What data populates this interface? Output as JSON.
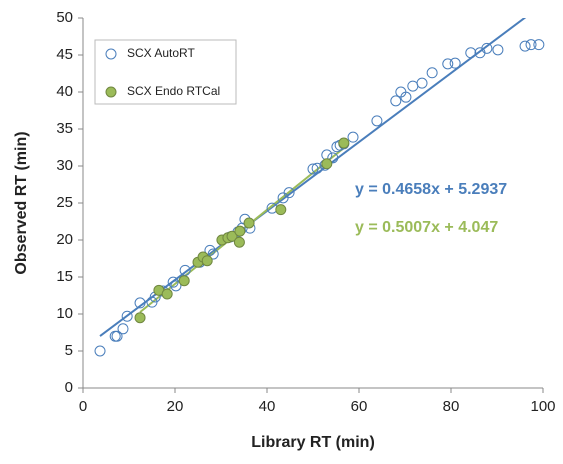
{
  "chart_data": {
    "type": "scatter",
    "x_label": "Library RT (min)",
    "y_label": "Observed RT (min)",
    "xlim": [
      0,
      100
    ],
    "xticks": [
      0,
      20,
      40,
      60,
      80,
      100
    ],
    "ylim": [
      0,
      50
    ],
    "yticks": [
      0,
      5,
      10,
      15,
      20,
      25,
      30,
      35,
      40,
      45,
      50
    ],
    "grid": false,
    "legend": "upper left",
    "series": [
      {
        "name": "SCX AutoRT",
        "color": "#4a7ebb",
        "filled": false,
        "x": [
          3.7,
          7.0,
          7.4,
          8.7,
          9.6,
          12.4,
          15.0,
          15.7,
          17.4,
          19.6,
          20.2,
          22.2,
          25.4,
          26.5,
          27.6,
          28.3,
          32.0,
          33.7,
          34.6,
          35.2,
          36.3,
          41.1,
          43.5,
          44.8,
          50.0,
          50.9,
          52.6,
          53.0,
          54.3,
          55.2,
          55.9,
          56.7,
          58.7,
          63.9,
          68.0,
          69.1,
          70.2,
          71.7,
          73.7,
          75.9,
          79.3,
          80.9,
          84.3,
          86.3,
          87.8,
          90.2,
          96.1,
          97.4,
          99.1
        ],
        "values": [
          5.0,
          7.0,
          7.0,
          8.0,
          9.7,
          11.5,
          11.6,
          12.3,
          13.1,
          14.3,
          13.8,
          15.9,
          17.0,
          17.3,
          18.6,
          18.1,
          20.4,
          21.1,
          21.6,
          22.8,
          21.6,
          24.3,
          25.7,
          26.4,
          29.6,
          29.7,
          30.1,
          31.5,
          31.1,
          32.6,
          32.8,
          33.0,
          33.9,
          36.1,
          38.8,
          40.0,
          39.3,
          40.8,
          41.2,
          42.6,
          43.8,
          43.9,
          45.3,
          45.3,
          45.9,
          45.7,
          46.2,
          46.4,
          46.4
        ],
        "trendline": {
          "slope": 0.4658,
          "intercept": 5.2937,
          "label": "y = 0.4658x + 5.2937"
        }
      },
      {
        "name": "SCX Endo RTCal",
        "color": "#9bbb59",
        "filled": true,
        "x": [
          12.4,
          16.5,
          18.3,
          22.0,
          25.0,
          26.1,
          27.0,
          30.2,
          31.5,
          32.4,
          34.1,
          34.0,
          36.1,
          43.0,
          53.0,
          56.7
        ],
        "values": [
          9.5,
          13.2,
          12.7,
          14.5,
          17.0,
          17.7,
          17.2,
          20.0,
          20.3,
          20.5,
          21.2,
          19.7,
          22.3,
          24.1,
          30.3,
          33.1
        ],
        "trendline": {
          "slope": 0.5007,
          "intercept": 4.047,
          "label": "y = 0.5007x + 4.047"
        }
      }
    ]
  }
}
